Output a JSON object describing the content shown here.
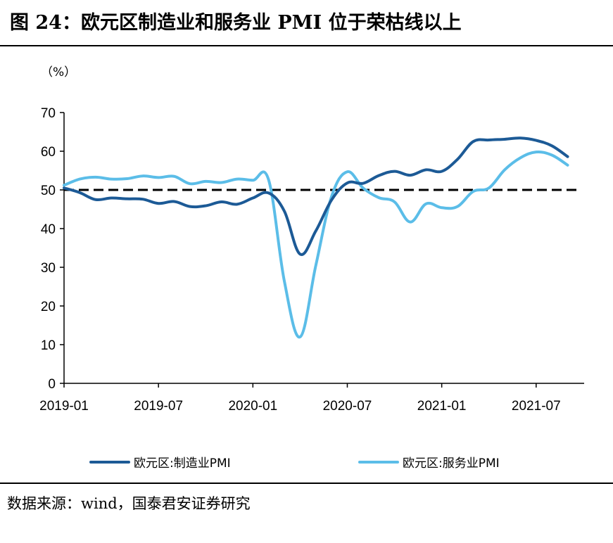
{
  "header": {
    "title": "图 24：欧元区制造业和服务业 PMI 位于荣枯线以上"
  },
  "footer": {
    "source": "数据来源：wind，国泰君安证券研究"
  },
  "chart_data": {
    "type": "line",
    "unit": "（%）",
    "ylim": [
      0,
      70
    ],
    "yticks": [
      "0",
      "10",
      "20",
      "30",
      "40",
      "50",
      "60",
      "70"
    ],
    "xticks": [
      "2019-01",
      "2019-07",
      "2020-01",
      "2020-07",
      "2021-01",
      "2021-07"
    ],
    "x": [
      "2019-01",
      "2019-02",
      "2019-03",
      "2019-04",
      "2019-05",
      "2019-06",
      "2019-07",
      "2019-08",
      "2019-09",
      "2019-10",
      "2019-11",
      "2019-12",
      "2020-01",
      "2020-02",
      "2020-03",
      "2020-04",
      "2020-05",
      "2020-06",
      "2020-07",
      "2020-08",
      "2020-09",
      "2020-10",
      "2020-11",
      "2020-12",
      "2021-01",
      "2021-02",
      "2021-03",
      "2021-04",
      "2021-05",
      "2021-06",
      "2021-07",
      "2021-08",
      "2021-09"
    ],
    "reference_line": 50,
    "series": [
      {
        "name": "欧元区:制造业PMI",
        "color": "#1c5a96",
        "values": [
          50.5,
          49.3,
          47.5,
          47.9,
          47.7,
          47.6,
          46.5,
          47.0,
          45.7,
          45.9,
          46.9,
          46.3,
          47.9,
          49.2,
          44.5,
          33.4,
          39.4,
          47.4,
          51.8,
          51.7,
          53.7,
          54.8,
          53.8,
          55.2,
          54.8,
          57.9,
          62.5,
          62.9,
          63.1,
          63.4,
          62.8,
          61.4,
          58.6
        ]
      },
      {
        "name": "欧元区:服务业PMI",
        "color": "#5bbde8",
        "values": [
          51.2,
          52.8,
          53.3,
          52.8,
          52.9,
          53.6,
          53.2,
          53.5,
          51.6,
          52.2,
          51.9,
          52.8,
          52.5,
          52.6,
          26.4,
          12.0,
          30.5,
          48.3,
          54.7,
          50.5,
          48.0,
          46.9,
          41.7,
          46.4,
          45.4,
          45.7,
          49.6,
          50.5,
          55.2,
          58.3,
          59.8,
          59.0,
          56.4
        ]
      }
    ]
  }
}
